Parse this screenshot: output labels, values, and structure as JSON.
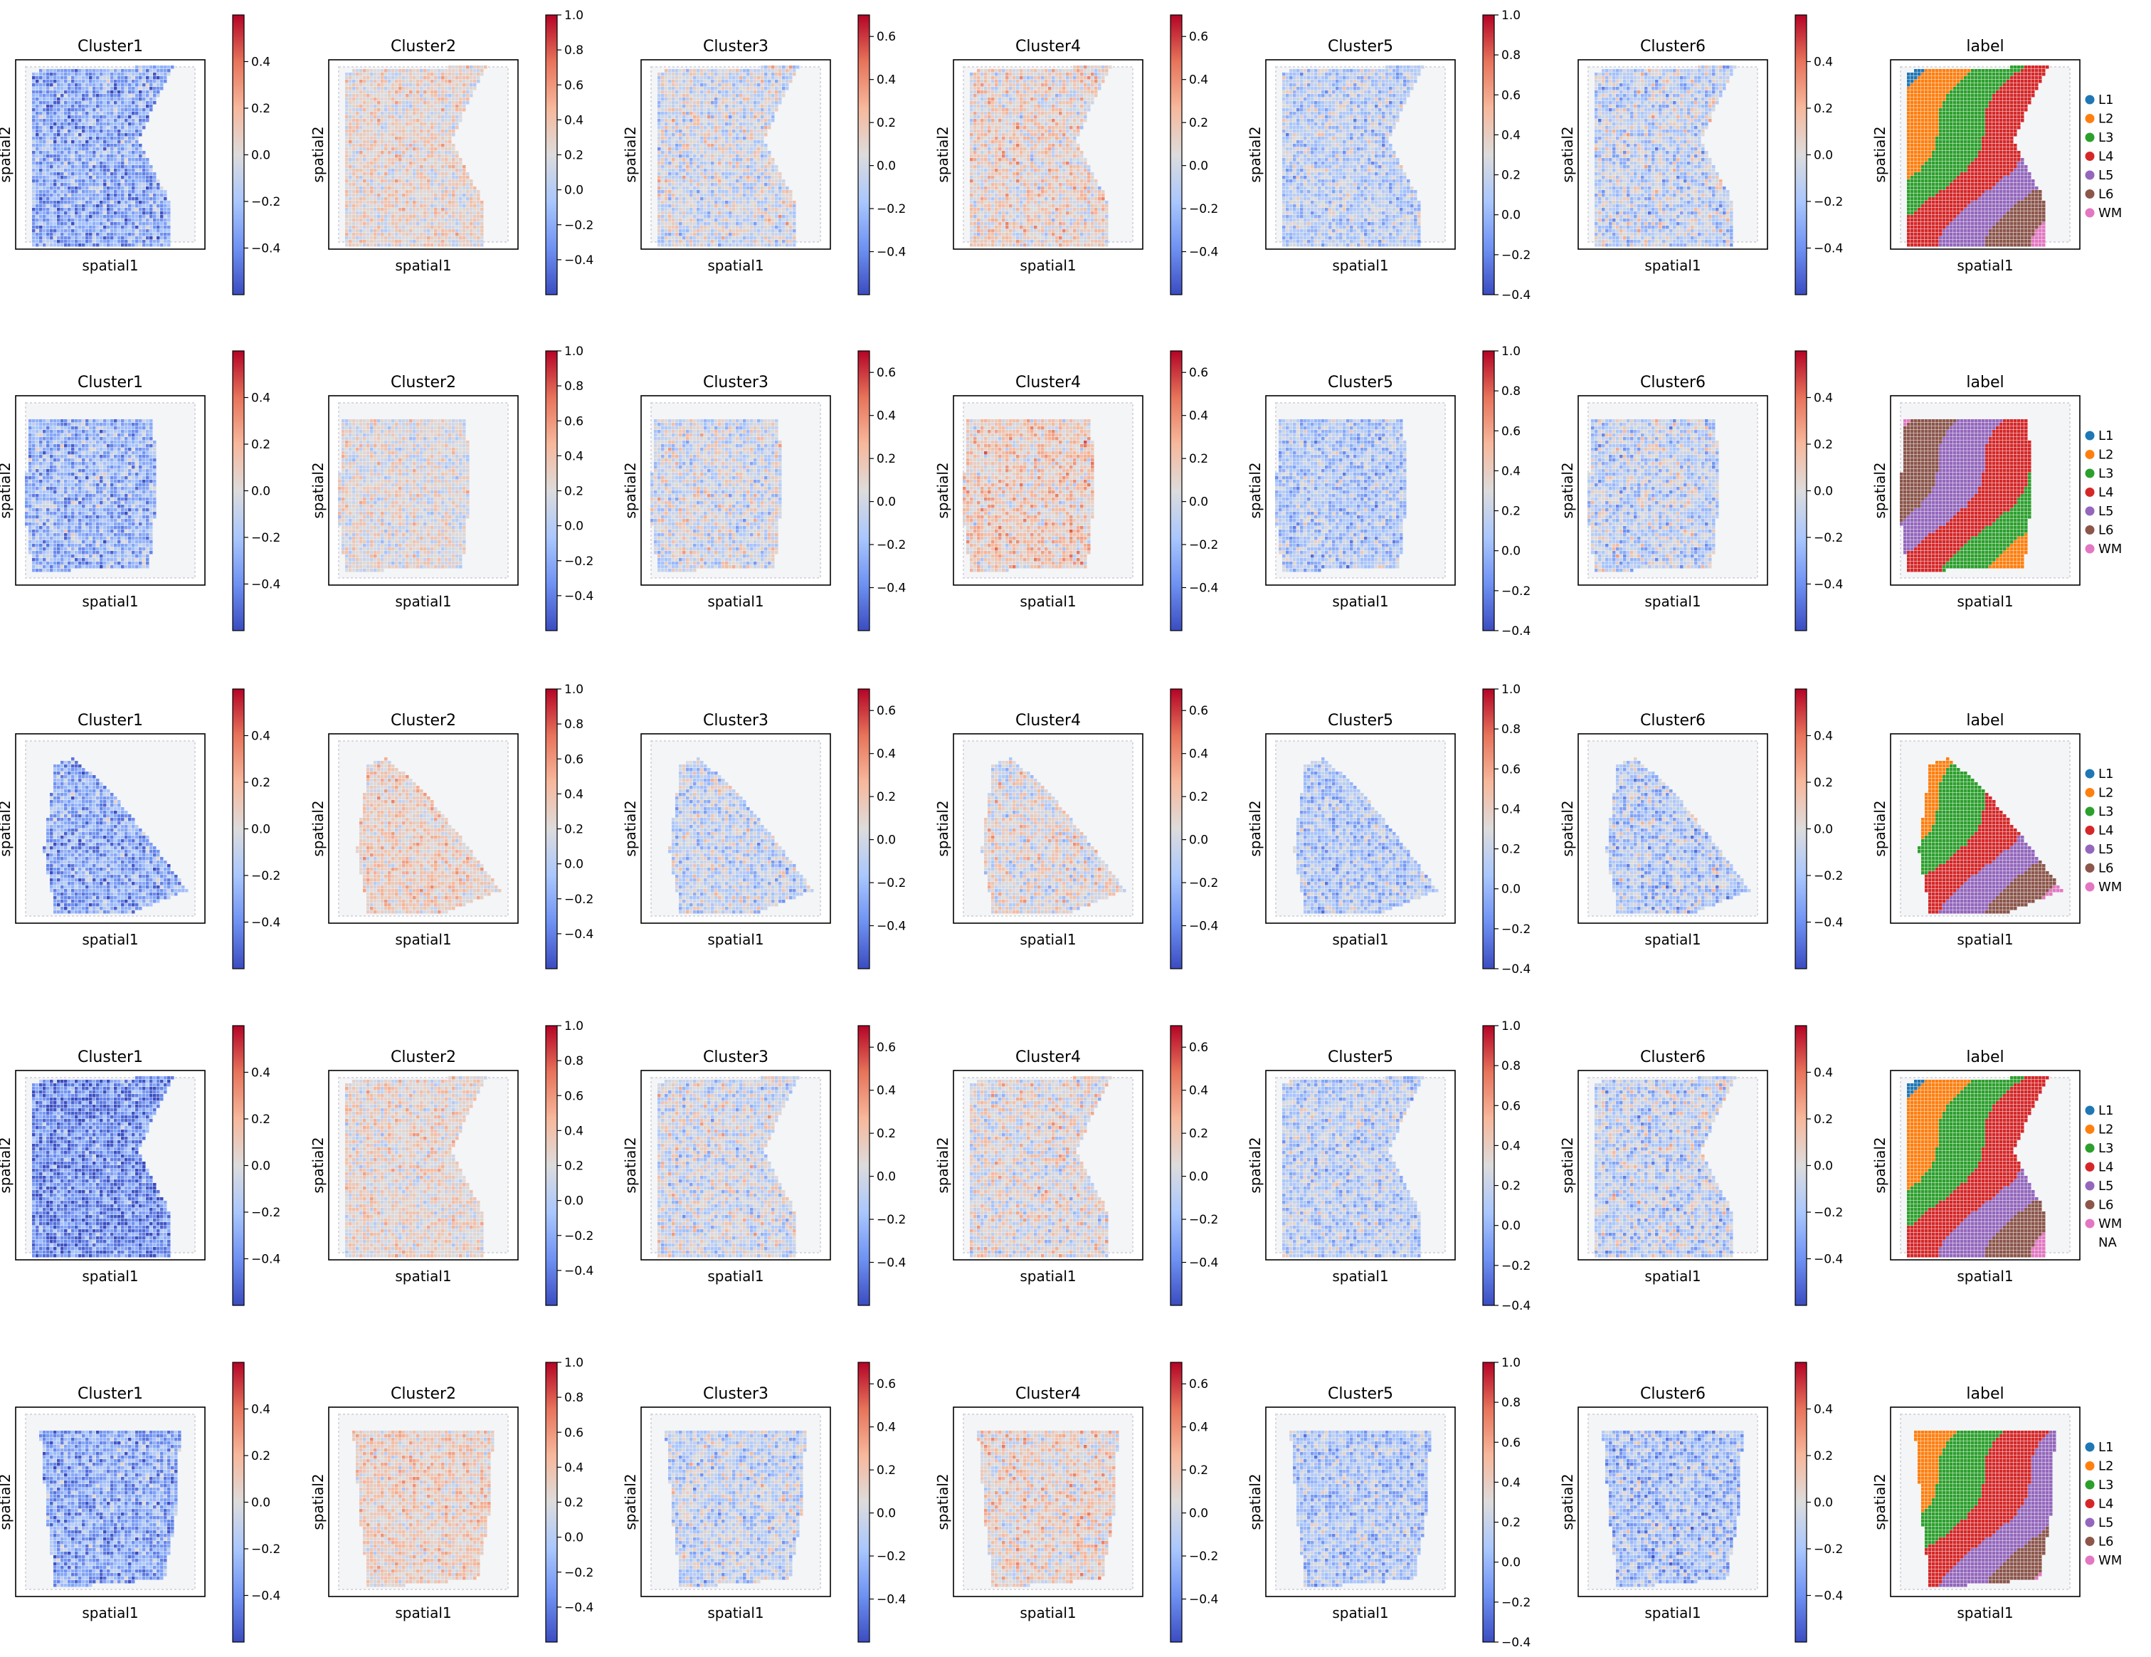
{
  "figure": {
    "panel_titles": [
      "Cluster1",
      "Cluster2",
      "Cluster3",
      "Cluster4",
      "Cluster5",
      "Cluster6",
      "label"
    ],
    "xlabel": "spatial1",
    "ylabel": "spatial2"
  },
  "colorbars": {
    "Cluster1": {
      "range": [
        -0.6,
        0.6
      ],
      "ticks": [
        "0.4",
        "0.2",
        "0.0",
        "−0.2",
        "−0.4"
      ],
      "values": [
        0.4,
        0.2,
        0.0,
        -0.2,
        -0.4
      ]
    },
    "Cluster2": {
      "range": [
        -0.6,
        1.0
      ],
      "ticks": [
        "1.0",
        "0.8",
        "0.6",
        "0.4",
        "0.2",
        "0.0",
        "−0.2",
        "−0.4"
      ],
      "values": [
        1.0,
        0.8,
        0.6,
        0.4,
        0.2,
        0.0,
        -0.2,
        -0.4
      ]
    },
    "Cluster3": {
      "range": [
        -0.6,
        0.7
      ],
      "ticks": [
        "0.6",
        "0.4",
        "0.2",
        "0.0",
        "−0.2",
        "−0.4"
      ],
      "values": [
        0.6,
        0.4,
        0.2,
        0.0,
        -0.2,
        -0.4
      ]
    },
    "Cluster4": {
      "range": [
        -0.6,
        0.7
      ],
      "ticks": [
        "0.6",
        "0.4",
        "0.2",
        "0.0",
        "−0.2",
        "−0.4"
      ],
      "values": [
        0.6,
        0.4,
        0.2,
        0.0,
        -0.2,
        -0.4
      ]
    },
    "Cluster5": {
      "range": [
        -0.4,
        1.0
      ],
      "ticks": [
        "1.0",
        "0.8",
        "0.6",
        "0.4",
        "0.2",
        "0.0",
        "−0.2",
        "−0.4"
      ],
      "values": [
        1.0,
        0.8,
        0.6,
        0.4,
        0.2,
        0.0,
        -0.2,
        -0.4
      ]
    },
    "Cluster6": {
      "range": [
        -0.6,
        0.6
      ],
      "ticks": [
        "0.4",
        "0.2",
        "0.0",
        "−0.2",
        "−0.4"
      ],
      "values": [
        0.4,
        0.2,
        0.0,
        -0.2,
        -0.4
      ]
    }
  },
  "legend": {
    "labels": [
      "L1",
      "L2",
      "L3",
      "L4",
      "L5",
      "L6",
      "WM"
    ],
    "colors": [
      "#1f77b4",
      "#ff7f0e",
      "#2ca02c",
      "#d62728",
      "#9467bd",
      "#8c564b",
      "#e377c2"
    ],
    "na_label": "NA"
  },
  "colormap": "coolwarm",
  "colormap_stops": [
    "#3b4cc0",
    "#6f92f3",
    "#aac7fd",
    "#dddcdc",
    "#f7b89c",
    "#e7745b",
    "#b40426"
  ],
  "chart_data": {
    "type": "heatmap",
    "description_rows": 5,
    "description_cols": 7,
    "rows": [
      {
        "tissue_shape": "hourglass",
        "label_bands": [
          "L1",
          "L2",
          "L3",
          "L4",
          "L5",
          "L6",
          "WM"
        ],
        "show_na": false,
        "mean_values": {
          "Cluster1": -0.3,
          "Cluster2": 0.25,
          "Cluster3": 0.0,
          "Cluster4": 0.1,
          "Cluster5": 0.15,
          "Cluster6": -0.1
        }
      },
      {
        "tissue_shape": "rectangle",
        "label_bands": [
          "WM",
          "L6",
          "L5",
          "L4",
          "L3",
          "L2",
          "L1"
        ],
        "show_na": false,
        "mean_values": {
          "Cluster1": -0.25,
          "Cluster2": 0.2,
          "Cluster3": 0.0,
          "Cluster4": 0.15,
          "Cluster5": 0.1,
          "Cluster6": -0.1
        }
      },
      {
        "tissue_shape": "triangle",
        "label_bands": [
          "L1",
          "L2",
          "L3",
          "L4",
          "L5",
          "L6",
          "WM"
        ],
        "show_na": false,
        "mean_values": {
          "Cluster1": -0.3,
          "Cluster2": 0.3,
          "Cluster3": -0.05,
          "Cluster4": 0.05,
          "Cluster5": 0.1,
          "Cluster6": -0.15
        }
      },
      {
        "tissue_shape": "hourglass",
        "label_bands": [
          "L1",
          "L2",
          "L3",
          "L4",
          "L5",
          "L6",
          "WM"
        ],
        "show_na": true,
        "mean_values": {
          "Cluster1": -0.4,
          "Cluster2": 0.25,
          "Cluster3": 0.0,
          "Cluster4": 0.05,
          "Cluster5": 0.15,
          "Cluster6": -0.1
        }
      },
      {
        "tissue_shape": "square",
        "label_bands": [
          "L1",
          "L2",
          "L3",
          "L4",
          "L5",
          "L6",
          "WM"
        ],
        "show_na": false,
        "mean_values": {
          "Cluster1": -0.3,
          "Cluster2": 0.3,
          "Cluster3": -0.05,
          "Cluster4": 0.1,
          "Cluster5": 0.1,
          "Cluster6": -0.2
        }
      }
    ]
  }
}
